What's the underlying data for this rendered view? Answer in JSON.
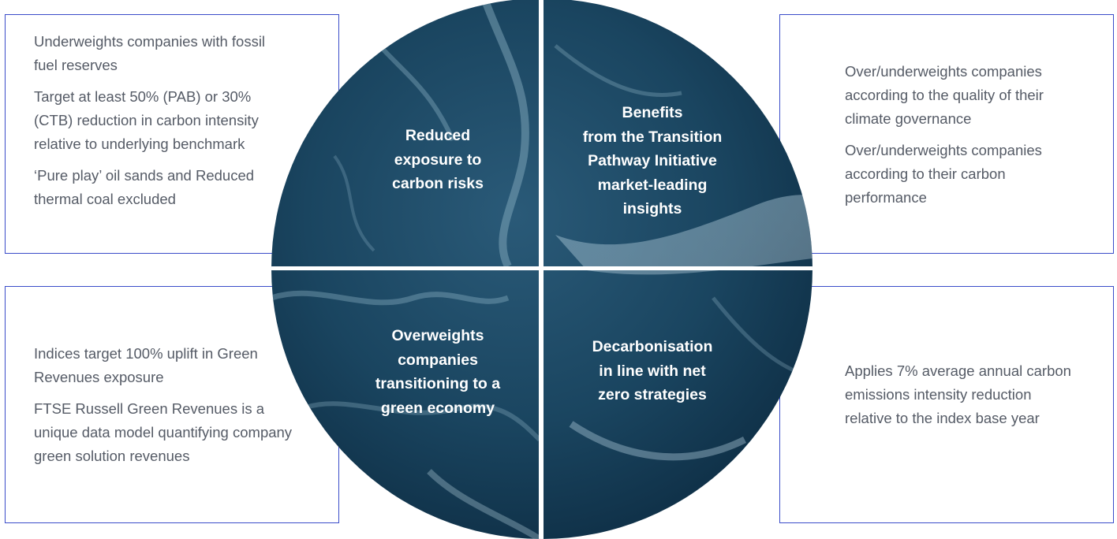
{
  "quadrants": {
    "top_left": {
      "label": "Reduced exposure to carbon risks",
      "label_lines": [
        "Reduced",
        "exposure to",
        "carbon risks"
      ],
      "points": [
        "Underweights companies with fossil fuel reserves",
        "Target at least 50% (PAB) or 30% (CTB) reduction in carbon intensity relative to underlying benchmark",
        "‘Pure play’ oil sands and Reduced thermal coal excluded"
      ]
    },
    "top_right": {
      "label": "Benefits from the Transition Pathway Initiative market-leading insights",
      "label_lines": [
        "Benefits",
        "from the Transition",
        "Pathway Initiative",
        "market-leading",
        "insights"
      ],
      "points": [
        "Over/underweights companies according to the quality of their climate governance",
        "Over/underweights companies according to their carbon performance"
      ]
    },
    "bottom_left": {
      "label": "Overweights companies transitioning to a green economy",
      "label_lines": [
        "Overweights",
        "companies",
        "transitioning to a",
        "green economy"
      ],
      "points": [
        "Indices target 100% uplift in Green Revenues exposure",
        "FTSE Russell Green Revenues is a unique data model quantifying company green solution revenues"
      ]
    },
    "bottom_right": {
      "label": "Decarbonisation in line with net zero strategies",
      "label_lines": [
        "Decarbonisation",
        "in line with net",
        "zero strategies"
      ],
      "points": [
        "Applies 7% average annual carbon emissions intensity reduction relative to the index base year"
      ]
    }
  },
  "colors": {
    "box_border": "#3a4cc9",
    "body_text": "#555b66",
    "ocean_dark": "#0f2f45",
    "ocean_mid": "#1e4a66",
    "ocean_light": "#3d6f8c",
    "label_text": "#ffffff"
  }
}
